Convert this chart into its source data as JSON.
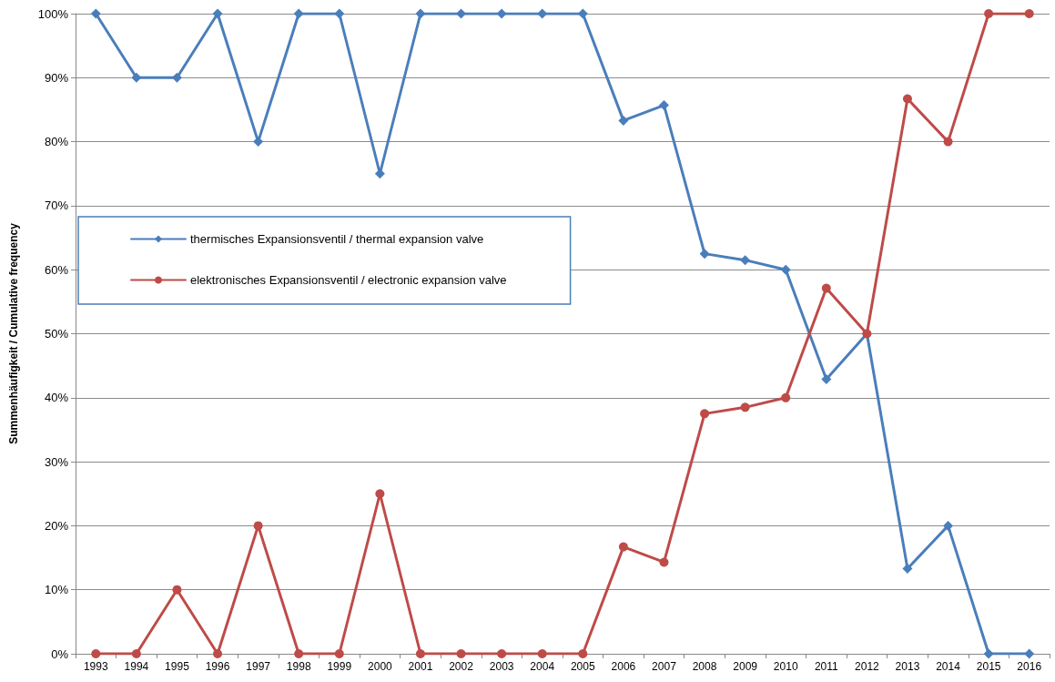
{
  "chart_data": {
    "type": "line",
    "ylabel": "Summenhäufigkeit / Cumulative frequency",
    "categories": [
      "1993",
      "1994",
      "1995",
      "1996",
      "1997",
      "1998",
      "1999",
      "2000",
      "2001",
      "2002",
      "2003",
      "2004",
      "2005",
      "2006",
      "2007",
      "2008",
      "2009",
      "2010",
      "2011",
      "2012",
      "2013",
      "2014",
      "2015",
      "2016"
    ],
    "series": [
      {
        "name": "thermisches Expansionsventil / thermal expansion valve",
        "color": "#4a7ebb",
        "marker": "diamond",
        "values": [
          100,
          90,
          90,
          100,
          80,
          100,
          100,
          75,
          100,
          100,
          100,
          100,
          100,
          83.3,
          85.7,
          62.5,
          61.5,
          60,
          42.9,
          50,
          13.3,
          20,
          0,
          0
        ]
      },
      {
        "name": "elektronisches Expansionsventil / electronic expansion valve",
        "color": "#be4b48",
        "marker": "circle",
        "values": [
          0,
          0,
          10,
          0,
          20,
          0,
          0,
          25,
          0,
          0,
          0,
          0,
          0,
          16.7,
          14.3,
          37.5,
          38.5,
          40,
          57.1,
          50,
          86.7,
          80,
          100,
          100
        ]
      }
    ],
    "ylim": [
      0,
      100
    ],
    "yticks": [
      {
        "value": 0,
        "label": "0%"
      },
      {
        "value": 10,
        "label": "10%"
      },
      {
        "value": 20,
        "label": "20%"
      },
      {
        "value": 30,
        "label": "30%"
      },
      {
        "value": 40,
        "label": "40%"
      },
      {
        "value": 50,
        "label": "50%"
      },
      {
        "value": 60,
        "label": "60%"
      },
      {
        "value": 70,
        "label": "70%"
      },
      {
        "value": 80,
        "label": "80%"
      },
      {
        "value": 90,
        "label": "90%"
      },
      {
        "value": 100,
        "label": "100%"
      }
    ],
    "grid": "y",
    "legend": "left",
    "line_style": "solid"
  }
}
